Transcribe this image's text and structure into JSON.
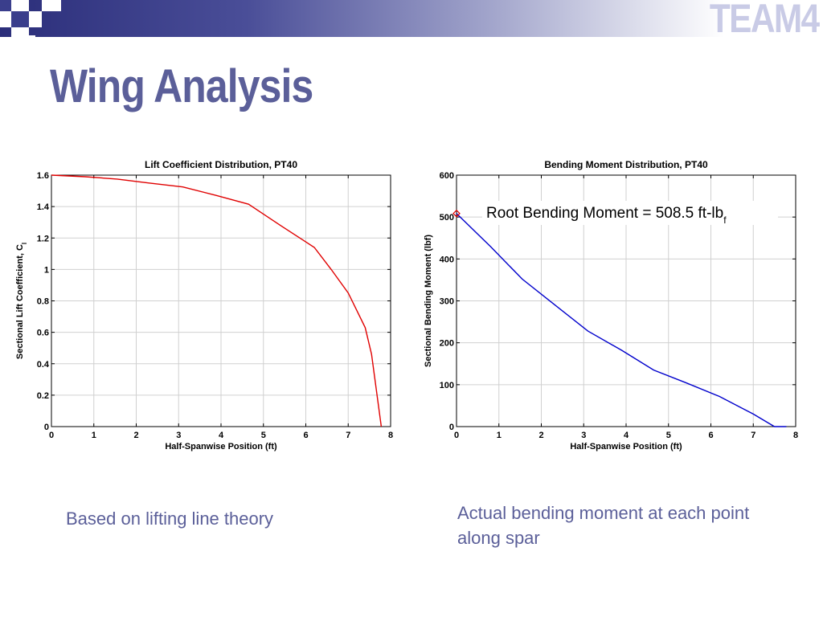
{
  "slide": {
    "title": "Wing Analysis",
    "logo_text": "TEAM4",
    "caption_left": "Based on lifting line theory",
    "caption_right": "Actual bending moment at each point along spar"
  },
  "colors": {
    "title": "#5b5f99",
    "header_dark": "#2b2e7a",
    "lift_line": "#e00000",
    "moment_line": "#0000cc"
  },
  "chart_data": [
    {
      "type": "line",
      "title": "Lift Coefficient Distribution, PT40",
      "xlabel": "Half-Spanwise Position (ft)",
      "ylabel": "Sectional Lift Coefficient, C",
      "ylabel_subscript": "l",
      "xlim": [
        0,
        8
      ],
      "ylim": [
        0,
        1.6
      ],
      "xticks": [
        0,
        1,
        2,
        3,
        4,
        5,
        6,
        7,
        8
      ],
      "yticks": [
        0,
        0.2,
        0.4,
        0.6,
        0.8,
        1,
        1.2,
        1.4,
        1.6
      ],
      "ytick_labels": [
        "0",
        "0.2",
        "0.4",
        "0.6",
        "0.8",
        "1",
        "1.2",
        "1.4",
        "1.6"
      ],
      "grid": true,
      "series": [
        {
          "color": "#e00000",
          "x": [
            0,
            0.8,
            1.55,
            2.3,
            3.1,
            3.9,
            4.65,
            5.4,
            6.2,
            6.6,
            7.0,
            7.4,
            7.55,
            7.78
          ],
          "y": [
            1.6,
            1.59,
            1.575,
            1.55,
            1.525,
            1.47,
            1.415,
            1.28,
            1.14,
            1.0,
            0.85,
            0.63,
            0.46,
            0.0
          ]
        }
      ]
    },
    {
      "type": "line",
      "title": "Bending Moment Distribution, PT40",
      "xlabel": "Half-Spanwise Position (ft)",
      "ylabel": "Sectional Bending Moment (lbf)",
      "xlim": [
        0,
        8
      ],
      "ylim": [
        0,
        600
      ],
      "xticks": [
        0,
        1,
        2,
        3,
        4,
        5,
        6,
        7,
        8
      ],
      "yticks": [
        0,
        100,
        200,
        300,
        400,
        500,
        600
      ],
      "ytick_labels": [
        "0",
        "100",
        "200",
        "300",
        "400",
        "500",
        "600"
      ],
      "grid": true,
      "annotation": {
        "text": "Root Bending Moment = 508.5 ft-lb",
        "subscript": "f",
        "marker_x": 0,
        "marker_y": 508.5
      },
      "series": [
        {
          "color": "#0000cc",
          "x": [
            0,
            0.8,
            1.55,
            2.3,
            3.1,
            3.9,
            4.65,
            5.4,
            6.2,
            7.0,
            7.5,
            7.78
          ],
          "y": [
            508.5,
            430,
            352,
            292,
            228,
            182,
            135,
            105,
            72,
            30,
            0,
            0
          ]
        }
      ]
    }
  ]
}
